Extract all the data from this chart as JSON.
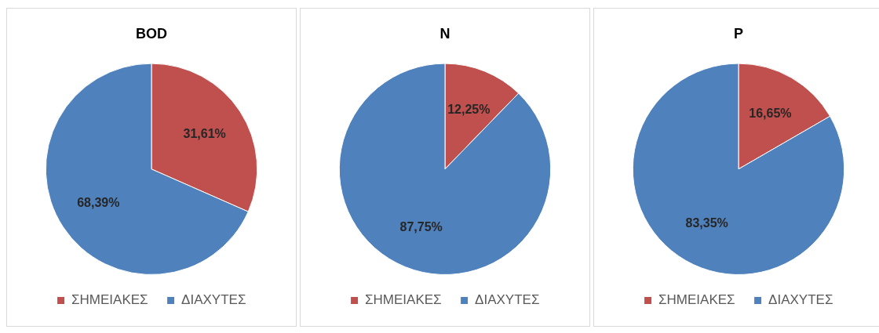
{
  "chart_data": [
    {
      "type": "pie",
      "title": "BOD",
      "categories": [
        "ΣΗΜΕΙΑΚΕΣ",
        "ΔΙΑΧΥΤΕΣ"
      ],
      "values": [
        31.61,
        68.39
      ],
      "colors": [
        "#c0504d",
        "#4f81bd"
      ],
      "value_labels": [
        "31,61%",
        "68,39%"
      ],
      "legend": "bottom"
    },
    {
      "type": "pie",
      "title": "N",
      "categories": [
        "ΣΗΜΕΙΑΚΕΣ",
        "ΔΙΑΧΥΤΕΣ"
      ],
      "values": [
        12.25,
        87.75
      ],
      "colors": [
        "#c0504d",
        "#4f81bd"
      ],
      "value_labels": [
        "12,25%",
        "87,75%"
      ],
      "legend": "bottom"
    },
    {
      "type": "pie",
      "title": "P",
      "categories": [
        "ΣΗΜΕΙΑΚΕΣ",
        "ΔΙΑΧΥΤΕΣ"
      ],
      "values": [
        16.65,
        83.35
      ],
      "colors": [
        "#c0504d",
        "#4f81bd"
      ],
      "value_labels": [
        "16,65%",
        "83,35%"
      ],
      "legend": "bottom"
    }
  ]
}
